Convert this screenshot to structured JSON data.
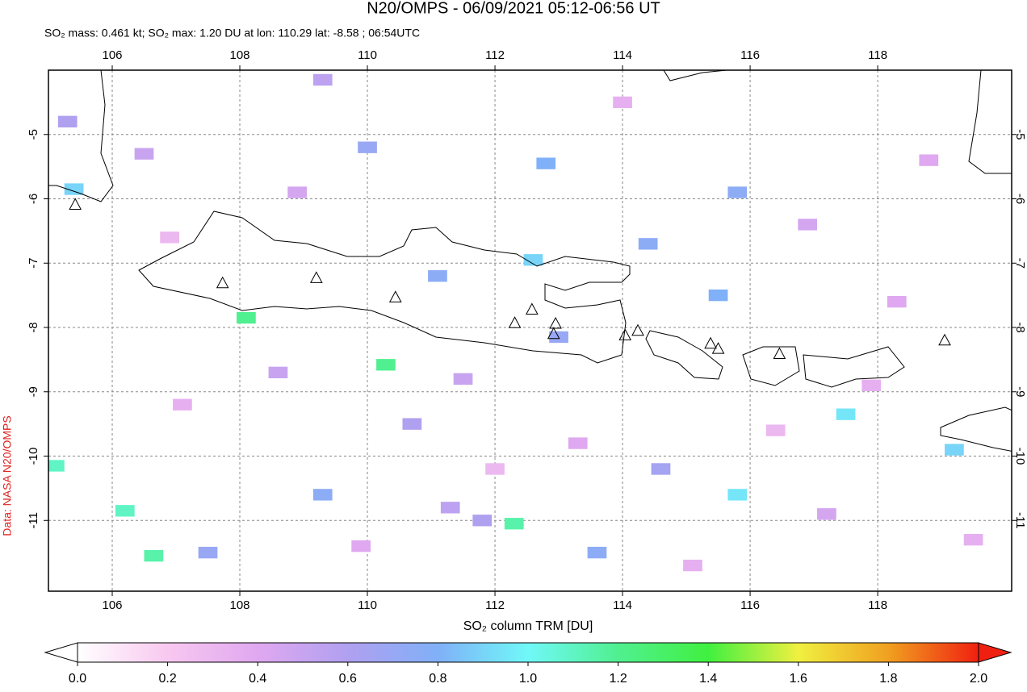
{
  "map": {
    "title": "N20/OMPS - 06/09/2021 05:12-06:56 UT",
    "subtitle": "SO₂ mass: 0.461 kt; SO₂ max: 1.20 DU at lon: 110.29 lat: -8.58 ; 06:54UTC",
    "credit": "Data: NASA N20/OMPS",
    "lonlim": [
      105,
      120.1
    ],
    "latlim": [
      -4,
      -12.1
    ],
    "lonticks": [
      106,
      108,
      110,
      112,
      114,
      116,
      118
    ],
    "latticks": [
      -5,
      -6,
      -7,
      -8,
      -9,
      -10,
      -11
    ],
    "grid": true,
    "volcanoes": [
      [
        105.42,
        -6.1
      ],
      [
        107.73,
        -7.32
      ],
      [
        109.2,
        -7.24
      ],
      [
        110.44,
        -7.54
      ],
      [
        112.31,
        -7.94
      ],
      [
        112.58,
        -7.73
      ],
      [
        112.95,
        -7.95
      ],
      [
        112.92,
        -8.11
      ],
      [
        114.04,
        -8.13
      ],
      [
        114.24,
        -8.06
      ],
      [
        115.38,
        -8.26
      ],
      [
        115.5,
        -8.34
      ],
      [
        116.46,
        -8.42
      ],
      [
        119.05,
        -8.21
      ]
    ],
    "pixels": [
      [
        105.4,
        -5.85,
        0.9
      ],
      [
        108.1,
        -7.85,
        1.2
      ],
      [
        110.29,
        -8.58,
        1.2
      ],
      [
        112.6,
        -6.95,
        0.9
      ],
      [
        112.8,
        -5.45,
        0.8
      ],
      [
        112.3,
        -11.05,
        1.15
      ],
      [
        106.2,
        -10.85,
        1.1
      ],
      [
        105.1,
        -10.15,
        1.1
      ],
      [
        106.65,
        -11.55,
        1.15
      ],
      [
        117.5,
        -9.35,
        0.95
      ],
      [
        115.8,
        -10.6,
        0.95
      ],
      [
        119.2,
        -9.9,
        0.9
      ],
      [
        111.1,
        -7.2,
        0.75
      ],
      [
        110.0,
        -5.2,
        0.7
      ],
      [
        114.4,
        -6.7,
        0.75
      ],
      [
        115.5,
        -7.5,
        0.8
      ],
      [
        115.8,
        -5.9,
        0.75
      ],
      [
        107.5,
        -11.5,
        0.7
      ],
      [
        114.6,
        -10.2,
        0.65
      ],
      [
        109.3,
        -4.15,
        0.55
      ],
      [
        110.7,
        -9.5,
        0.6
      ],
      [
        109.3,
        -10.6,
        0.75
      ],
      [
        113.6,
        -11.5,
        0.75
      ],
      [
        105.3,
        -4.8,
        0.6
      ],
      [
        111.3,
        -10.8,
        0.55
      ],
      [
        111.8,
        -11.0,
        0.6
      ],
      [
        113.0,
        -8.15,
        0.7
      ],
      [
        106.5,
        -5.3,
        0.5
      ],
      [
        108.9,
        -5.9,
        0.45
      ],
      [
        111.5,
        -8.8,
        0.5
      ],
      [
        113.3,
        -9.8,
        0.4
      ],
      [
        116.9,
        -6.4,
        0.45
      ],
      [
        118.3,
        -7.6,
        0.4
      ],
      [
        117.2,
        -10.9,
        0.45
      ],
      [
        119.5,
        -11.3,
        0.35
      ],
      [
        107.1,
        -9.2,
        0.35
      ],
      [
        109.9,
        -11.4,
        0.4
      ],
      [
        115.1,
        -11.7,
        0.35
      ],
      [
        118.8,
        -5.4,
        0.4
      ],
      [
        114.0,
        -4.5,
        0.35
      ],
      [
        106.9,
        -6.6,
        0.3
      ],
      [
        112.0,
        -10.2,
        0.3
      ],
      [
        116.4,
        -9.6,
        0.3
      ],
      [
        108.6,
        -8.7,
        0.5
      ],
      [
        117.9,
        -8.9,
        0.35
      ]
    ],
    "colorbar": {
      "label": "SO₂ column TRM [DU]",
      "lim": [
        0,
        2
      ],
      "ticks": [
        {
          "value": 0,
          "label": "0.0"
        },
        {
          "value": 0.2,
          "label": "0.2"
        },
        {
          "value": 0.4,
          "label": "0.4"
        },
        {
          "value": 0.6,
          "label": "0.6"
        },
        {
          "value": 0.8,
          "label": "0.8"
        },
        {
          "value": 1,
          "label": "1.0"
        },
        {
          "value": 1.2,
          "label": "1.2"
        },
        {
          "value": 1.4,
          "label": "1.4"
        },
        {
          "value": 1.6,
          "label": "1.6"
        },
        {
          "value": 1.8,
          "label": "1.8"
        },
        {
          "value": 2,
          "label": "2.0"
        }
      ],
      "colormap": [
        [
          0,
          "#ffffff"
        ],
        [
          0.2,
          "#f8c8f0"
        ],
        [
          0.4,
          "#e0a8f0"
        ],
        [
          0.6,
          "#b0a0f0"
        ],
        [
          0.8,
          "#80b0f8"
        ],
        [
          1,
          "#70f8f8"
        ],
        [
          1.2,
          "#50f090"
        ],
        [
          1.4,
          "#40f040"
        ],
        [
          1.6,
          "#f0f040"
        ],
        [
          1.8,
          "#f0a020"
        ],
        [
          2,
          "#f02010"
        ]
      ]
    }
  }
}
